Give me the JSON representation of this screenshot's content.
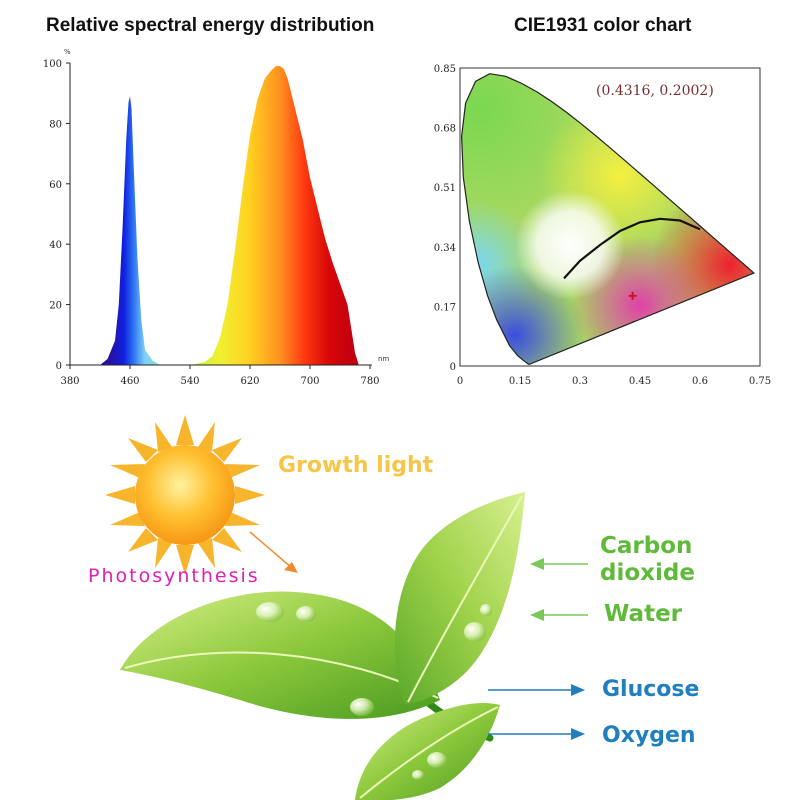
{
  "chart_data": [
    {
      "type": "area",
      "title": "Relative spectral energy distribution",
      "xlabel": "nm",
      "ylabel": "%",
      "xlim": [
        380,
        780
      ],
      "ylim": [
        0,
        100
      ],
      "x_ticks": [
        "380",
        "460",
        "540",
        "620",
        "700",
        "780"
      ],
      "y_ticks": [
        "0",
        "20",
        "40",
        "60",
        "80",
        "100"
      ],
      "grid": false,
      "series": [
        {
          "name": "spectrum",
          "x": [
            420,
            430,
            440,
            445,
            450,
            455,
            458,
            460,
            462,
            465,
            470,
            475,
            480,
            490,
            500,
            510,
            520,
            540,
            560,
            570,
            580,
            590,
            600,
            610,
            620,
            630,
            640,
            650,
            655,
            660,
            665,
            670,
            680,
            690,
            700,
            710,
            720,
            730,
            740,
            750,
            755,
            760,
            765
          ],
          "values": [
            0,
            2,
            8,
            20,
            45,
            75,
            87,
            89,
            85,
            65,
            35,
            15,
            5,
            1.5,
            0,
            0,
            0,
            0,
            1,
            3,
            9,
            20,
            38,
            58,
            76,
            88,
            95,
            98,
            99,
            99,
            98,
            95,
            85,
            75,
            62,
            52,
            42,
            34,
            27,
            20,
            12,
            4,
            0
          ]
        }
      ]
    },
    {
      "type": "scatter",
      "title": "CIE1931 color chart",
      "xlim": [
        0,
        0.75
      ],
      "ylim": [
        0,
        0.85
      ],
      "x_ticks": [
        "0",
        "0.15",
        "0.3",
        "0.45",
        "0.6",
        "0.75"
      ],
      "y_ticks": [
        "0",
        "0.17",
        "0.34",
        "0.51",
        "0.68",
        "0.85"
      ],
      "point": {
        "x": 0.4316,
        "y": 0.2002,
        "label": "(0.4316,  0.2002)"
      },
      "planckian_locus": {
        "x": [
          0.26,
          0.3,
          0.35,
          0.4,
          0.45,
          0.5,
          0.55,
          0.58,
          0.6
        ],
        "y": [
          0.25,
          0.3,
          0.345,
          0.385,
          0.41,
          0.42,
          0.415,
          0.4,
          0.39
        ]
      }
    }
  ],
  "diagram": {
    "growth_light": "Growth light",
    "photosynthesis": "Photosynthesis",
    "inputs": [
      "Carbon dioxide",
      "Water"
    ],
    "outputs": [
      "Glucose",
      "Oxygen"
    ],
    "input_color": "#5fba3a",
    "output_color": "#1f7fbf",
    "photosynthesis_color": "#e020b0",
    "growth_light_color": "#f7c649"
  }
}
